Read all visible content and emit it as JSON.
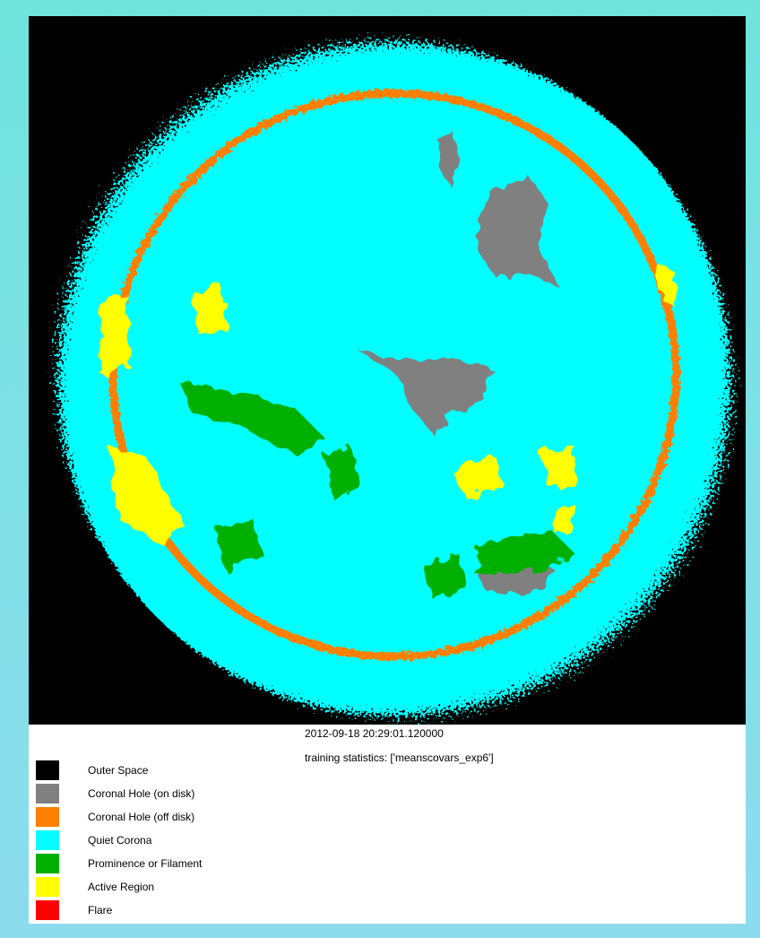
{
  "image": {
    "timestamp": "2012-09-18 20:29:01.120000",
    "training_statistics": "training statistics: ['meanscovars_exp6']"
  },
  "legend": [
    {
      "label": "Outer Space",
      "color": "#000000"
    },
    {
      "label": "Coronal Hole (on disk)",
      "color": "#808080"
    },
    {
      "label": "Coronal Hole (off disk)",
      "color": "#ff8000"
    },
    {
      "label": "Quiet Corona",
      "color": "#00ffff"
    },
    {
      "label": "Prominence or Filament",
      "color": "#00b000"
    },
    {
      "label": "Active Region",
      "color": "#ffff00"
    },
    {
      "label": "Flare",
      "color": "#ff0000"
    }
  ]
}
